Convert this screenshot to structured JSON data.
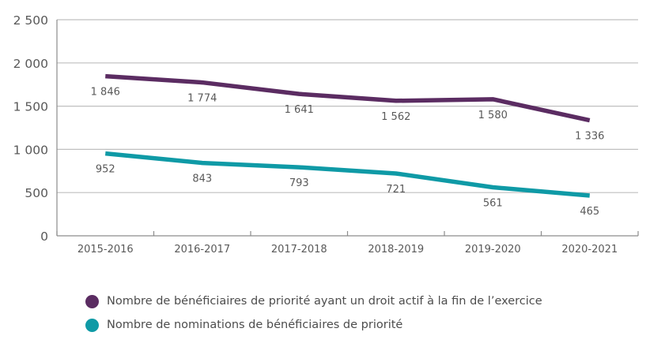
{
  "chart_data": {
    "type": "line",
    "title": "",
    "xlabel": "",
    "ylabel": "",
    "categories": [
      "2015-2016",
      "2016-2017",
      "2017-2018",
      "2018-2019",
      "2019-2020",
      "2020-2021"
    ],
    "ylim": [
      0,
      2500
    ],
    "yticks": [
      0,
      500,
      1000,
      1500,
      2000,
      2500
    ],
    "ytick_labels": [
      "0",
      "500",
      "1 000",
      "1 500",
      "2 000",
      "2 500"
    ],
    "grid": true,
    "legend_position": "bottom-left",
    "series": [
      {
        "name": "Nombre de bénéficiaires de priorité ayant un droit actif à la fin de l’exercice",
        "color": "#5b2c62",
        "values": [
          1846,
          1774,
          1641,
          1562,
          1580,
          1336
        ],
        "labels": [
          "1 846",
          "1 774",
          "1 641",
          "1 562",
          "1 580",
          "1 336"
        ]
      },
      {
        "name": "Nombre de nominations de bénéficiaires de priorité",
        "color": "#0f9aa6",
        "values": [
          952,
          843,
          793,
          721,
          561,
          465
        ],
        "labels": [
          "952",
          "843",
          "793",
          "721",
          "561",
          "465"
        ]
      }
    ]
  }
}
